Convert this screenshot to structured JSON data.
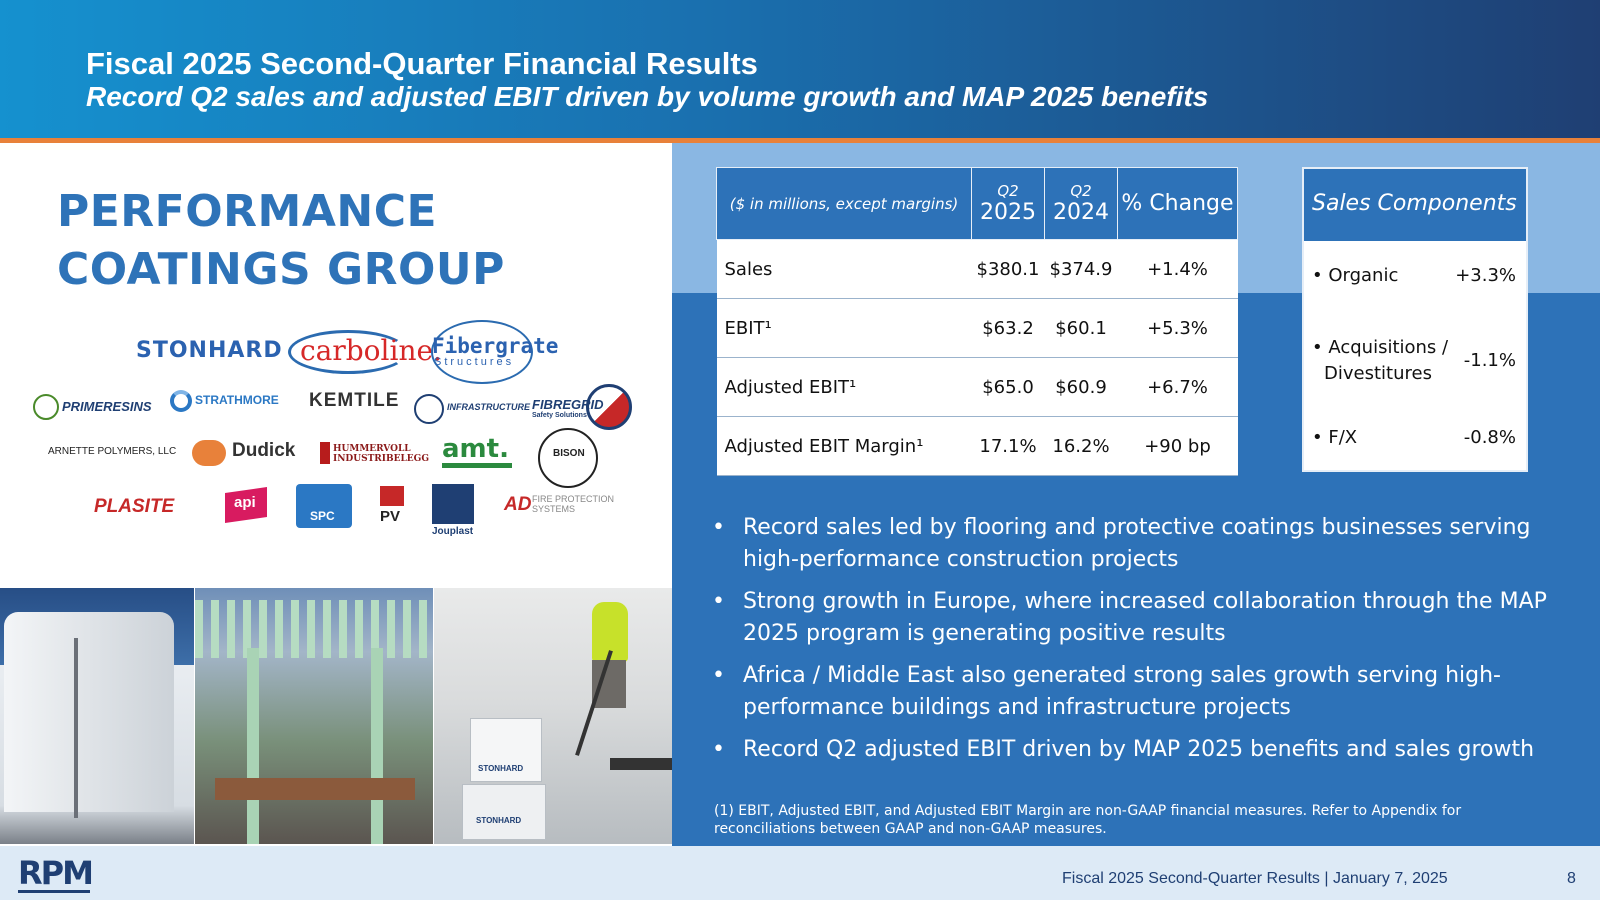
{
  "header": {
    "title": "Fiscal 2025 Second-Quarter Financial Results",
    "subtitle": "Record Q2 sales and adjusted EBIT driven by volume growth and MAP 2025 benefits"
  },
  "group": {
    "title_line1": "PERFORMANCE",
    "title_line2": "COATINGS GROUP"
  },
  "logos": {
    "stonhard": "STONHARD",
    "carboline": "carboline.",
    "fibergrate": "Fibergrate",
    "fibergrate_sub": "Structures",
    "primeresins": "PRIMERESINS",
    "strathmore": "STRATHMORE",
    "kemtile": "KEMTILE",
    "infrastructure": "INFRASTRUCTURE",
    "fibregrid": "FIBREGRID",
    "fibregrid_sub": "Safety Solutions",
    "arnette": "ARNETTE POLYMERS, LLC",
    "dudick": "Dudick",
    "hummervoll": "HUMMERVOLL INDUSTRIBELEGG",
    "amt": "amt.",
    "bison": "BISON",
    "plasite": "PLASITE",
    "api": "api",
    "spc": "SPC",
    "grupopv": "PV",
    "jouplast": "Jouplast",
    "ad": "AD",
    "ad_sub": "FIRE PROTECTION SYSTEMS"
  },
  "table": {
    "header_label": "($ in millions, except margins)",
    "col1_top": "Q2",
    "col1_year": "2025",
    "col2_top": "Q2",
    "col2_year": "2024",
    "col3": "% Change",
    "rows": [
      {
        "label": "Sales",
        "q2_2025": "$380.1",
        "q2_2024": "$374.9",
        "change": "+1.4%"
      },
      {
        "label": "EBIT¹",
        "q2_2025": "$63.2",
        "q2_2024": "$60.1",
        "change": "+5.3%"
      },
      {
        "label": "Adjusted EBIT¹",
        "q2_2025": "$65.0",
        "q2_2024": "$60.9",
        "change": "+6.7%"
      },
      {
        "label": "Adjusted EBIT Margin¹",
        "q2_2025": "17.1%",
        "q2_2024": "16.2%",
        "change": "+90 bp"
      }
    ]
  },
  "sales_components": {
    "title": "Sales Components",
    "items": [
      {
        "label": "Organic",
        "value": "+3.3%"
      },
      {
        "label_line1": "Acquisitions /",
        "label_line2": "Divestitures",
        "value": "-1.1%"
      },
      {
        "label": "F/X",
        "value": "-0.8%"
      }
    ]
  },
  "bullets": [
    "Record sales led by flooring and protective coatings businesses serving high-performance construction projects",
    "Strong growth in Europe, where increased collaboration through the MAP 2025 program is generating positive results",
    "Africa / Middle East also generated strong sales growth serving high-performance buildings and infrastructure projects",
    "Record Q2 adjusted EBIT driven by MAP 2025 benefits and sales growth"
  ],
  "footnote": "(1) EBIT, Adjusted EBIT, and Adjusted EBIT Margin are non-GAAP financial measures. Refer to Appendix for reconciliations between GAAP and non-GAAP measures.",
  "footer": {
    "logo": "RPM",
    "text": "Fiscal 2025 Second-Quarter Results | January 7, 2025",
    "page": "8"
  },
  "photo_labels": {
    "box1": "STONHARD",
    "box2": "STONHARD"
  },
  "colors": {
    "brand_blue": "#2d72b8",
    "header_dark": "#1f3f73",
    "accent_orange": "#e8813a",
    "light_blue": "#8ab7e3"
  }
}
